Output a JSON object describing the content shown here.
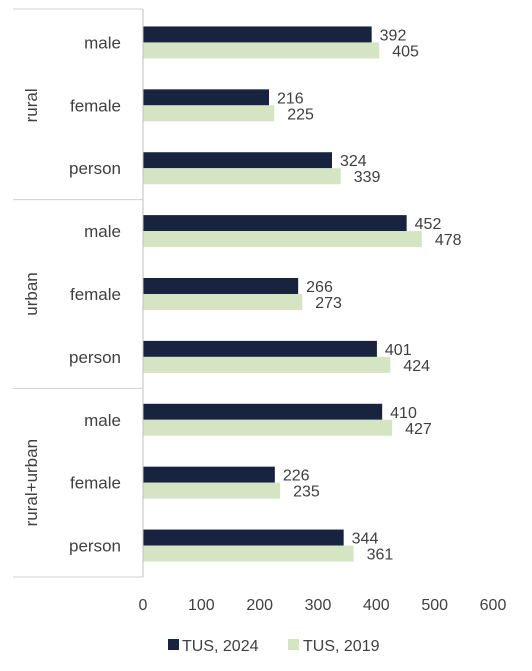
{
  "chart_data": {
    "type": "bar",
    "orientation": "horizontal",
    "groups": [
      {
        "name": "rural",
        "categories": [
          "male",
          "female",
          "person"
        ]
      },
      {
        "name": "urban",
        "categories": [
          "male",
          "female",
          "person"
        ]
      },
      {
        "name": "rural+urban",
        "categories": [
          "male",
          "female",
          "person"
        ]
      }
    ],
    "series": [
      {
        "name": "TUS, 2024",
        "color": "#17233f",
        "values": [
          392,
          216,
          324,
          452,
          266,
          401,
          410,
          226,
          344
        ]
      },
      {
        "name": "TUS, 2019",
        "color": "#d5e5c4",
        "values": [
          405,
          225,
          339,
          478,
          273,
          424,
          427,
          235,
          361
        ]
      }
    ],
    "xlim": [
      0,
      600
    ],
    "ticks": [
      "0",
      "100",
      "200",
      "300",
      "400",
      "500",
      "600"
    ],
    "grid": false,
    "legend_position": "bottom"
  }
}
